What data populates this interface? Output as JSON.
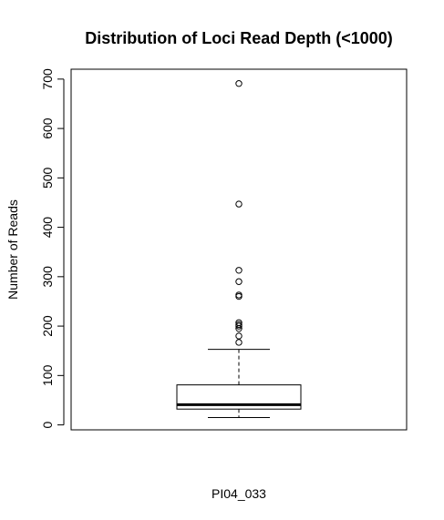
{
  "chart_data": {
    "type": "boxplot",
    "title": "Distribution of Loci Read Depth (<1000)",
    "xlabel": "PI04_033",
    "ylabel": "Number of Reads",
    "ylim": [
      -10,
      720
    ],
    "yticks": [
      {
        "value": 0,
        "label": "0"
      },
      {
        "value": 100,
        "label": "100"
      },
      {
        "value": 200,
        "label": "200"
      },
      {
        "value": 300,
        "label": "300"
      },
      {
        "value": 400,
        "label": "400"
      },
      {
        "value": 500,
        "label": "500"
      },
      {
        "value": 600,
        "label": "600"
      },
      {
        "value": 700,
        "label": "700"
      }
    ],
    "grid": false,
    "box": {
      "whisker_low": 15,
      "q1": 32,
      "median": 41,
      "q3": 81,
      "whisker_high": 153
    },
    "outliers": [
      167,
      180,
      195,
      200,
      203,
      207,
      260,
      263,
      290,
      313,
      447,
      691
    ],
    "colors": {
      "stroke": "#000000",
      "background": "#ffffff"
    }
  }
}
